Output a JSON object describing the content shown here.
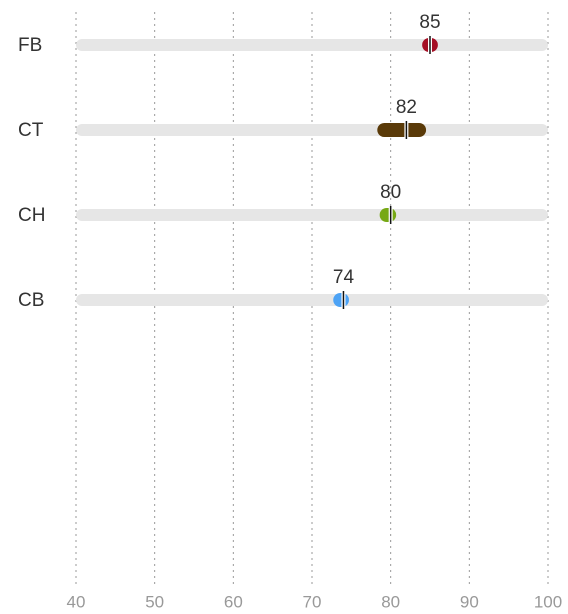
{
  "chart_data": {
    "type": "range",
    "categories": [
      "FB",
      "CT",
      "CH",
      "CB"
    ],
    "values": [
      85,
      82,
      80,
      74
    ],
    "low": [
      84,
      78.3,
      78.6,
      72.7
    ],
    "high": [
      86,
      84.5,
      80.7,
      74.7
    ],
    "colors": [
      "#a50f25",
      "#5a3a08",
      "#76a814",
      "#4da3f5"
    ],
    "xlim": [
      40,
      100
    ],
    "xticks": [
      40,
      50,
      60,
      70,
      80,
      90,
      100
    ],
    "grid": true
  }
}
